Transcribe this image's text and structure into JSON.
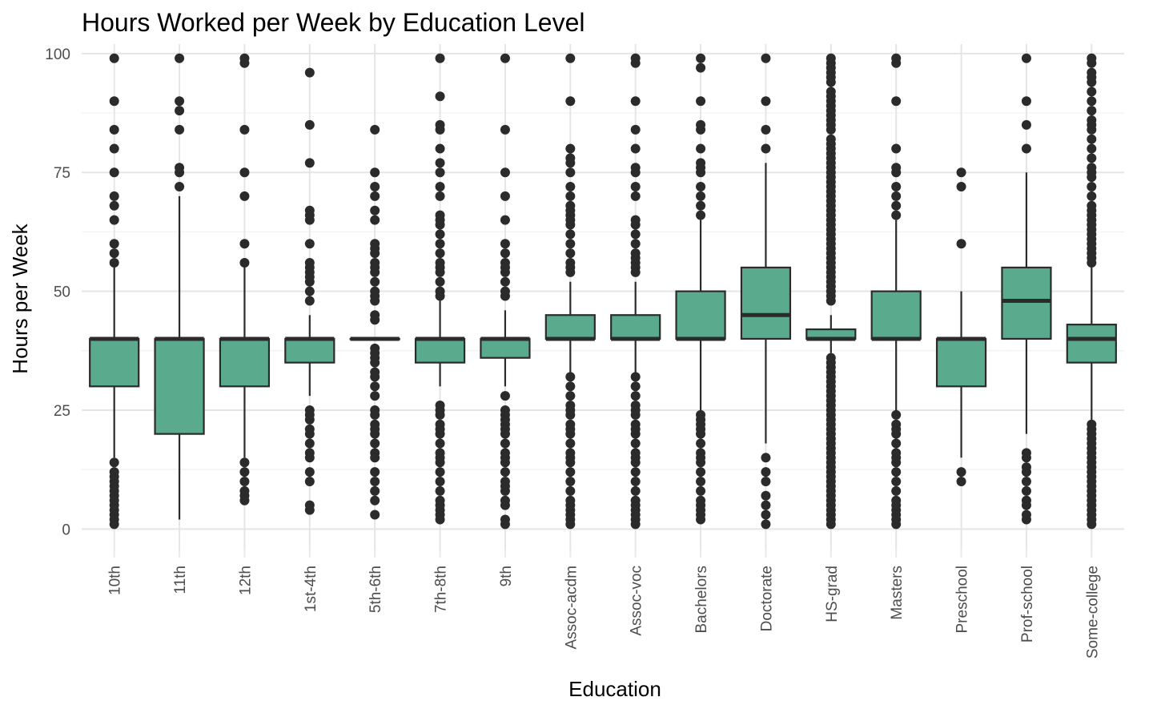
{
  "chart_data": {
    "type": "boxplot",
    "title": "Hours Worked per Week by Education Level",
    "xlabel": "Education",
    "ylabel": "Hours per Week",
    "ylim": [
      -5,
      102
    ],
    "yticks": [
      0,
      25,
      50,
      75,
      100
    ],
    "grid": true,
    "fill_color": "#5aaa8e",
    "line_color": "#2b2b2b",
    "categories": [
      "10th",
      "11th",
      "12th",
      "1st-4th",
      "5th-6th",
      "7th-8th",
      "9th",
      "Assoc-acdm",
      "Assoc-voc",
      "Bachelors",
      "Doctorate",
      "HS-grad",
      "Masters",
      "Preschool",
      "Prof-school",
      "Some-college"
    ],
    "boxes": [
      {
        "category": "10th",
        "whisker_low": 15,
        "q1": 30,
        "median": 40,
        "q3": 40,
        "whisker_high": 55,
        "outliers": [
          1,
          2,
          3,
          4,
          5,
          6,
          7,
          8,
          9,
          10,
          11,
          12,
          14,
          56,
          58,
          60,
          65,
          68,
          70,
          75,
          80,
          84,
          90,
          99
        ]
      },
      {
        "category": "11th",
        "whisker_low": 2,
        "q1": 20,
        "median": 40,
        "q3": 40,
        "whisker_high": 70,
        "outliers": [
          72,
          75,
          76,
          84,
          88,
          90,
          99
        ]
      },
      {
        "category": "12th",
        "whisker_low": 15,
        "q1": 30,
        "median": 40,
        "q3": 40,
        "whisker_high": 55,
        "outliers": [
          6,
          7,
          8,
          10,
          12,
          14,
          56,
          60,
          70,
          75,
          84,
          98,
          99
        ]
      },
      {
        "category": "1st-4th",
        "whisker_low": 28,
        "q1": 35,
        "median": 40,
        "q3": 40,
        "whisker_high": 45,
        "outliers": [
          4,
          5,
          10,
          12,
          15,
          16,
          18,
          20,
          21,
          23,
          24,
          25,
          48,
          50,
          52,
          53,
          54,
          55,
          56,
          60,
          65,
          66,
          67,
          77,
          85,
          96
        ]
      },
      {
        "category": "5th-6th",
        "whisker_low": 40,
        "q1": 40,
        "median": 40,
        "q3": 40,
        "whisker_high": 40,
        "outliers": [
          3,
          6,
          8,
          10,
          12,
          15,
          16,
          18,
          20,
          21,
          22,
          24,
          25,
          28,
          30,
          32,
          33,
          35,
          36,
          37,
          38,
          44,
          45,
          48,
          49,
          50,
          52,
          54,
          55,
          56,
          58,
          59,
          60,
          65,
          67,
          70,
          72,
          75,
          84
        ]
      },
      {
        "category": "7th-8th",
        "whisker_low": 30,
        "q1": 35,
        "median": 40,
        "q3": 40,
        "whisker_high": 48,
        "outliers": [
          2,
          3,
          4,
          5,
          6,
          8,
          10,
          12,
          14,
          15,
          16,
          18,
          20,
          21,
          22,
          24,
          25,
          26,
          49,
          50,
          52,
          54,
          55,
          56,
          58,
          60,
          62,
          64,
          65,
          66,
          70,
          72,
          75,
          77,
          80,
          84,
          85,
          91,
          99
        ]
      },
      {
        "category": "9th",
        "whisker_low": 30,
        "q1": 36,
        "median": 40,
        "q3": 40,
        "whisker_high": 46,
        "outliers": [
          1,
          2,
          5,
          6,
          8,
          9,
          10,
          12,
          14,
          15,
          16,
          18,
          20,
          21,
          22,
          23,
          24,
          25,
          28,
          49,
          50,
          52,
          54,
          55,
          56,
          58,
          60,
          65,
          70,
          75,
          84,
          99
        ]
      },
      {
        "category": "Assoc-acdm",
        "whisker_low": 33,
        "q1": 40,
        "median": 40,
        "q3": 45,
        "whisker_high": 52,
        "outliers": [
          1,
          2,
          3,
          4,
          5,
          6,
          8,
          10,
          12,
          14,
          15,
          16,
          18,
          20,
          21,
          22,
          24,
          25,
          26,
          28,
          30,
          32,
          54,
          55,
          56,
          58,
          60,
          62,
          64,
          65,
          66,
          67,
          68,
          70,
          72,
          75,
          77,
          78,
          80,
          90,
          99
        ]
      },
      {
        "category": "Assoc-voc",
        "whisker_low": 33,
        "q1": 40,
        "median": 40,
        "q3": 45,
        "whisker_high": 52,
        "outliers": [
          1,
          2,
          3,
          4,
          5,
          6,
          8,
          10,
          12,
          14,
          15,
          16,
          18,
          20,
          21,
          22,
          24,
          25,
          26,
          28,
          30,
          32,
          54,
          55,
          56,
          57,
          58,
          60,
          62,
          64,
          65,
          70,
          72,
          75,
          76,
          80,
          84,
          90,
          98,
          99
        ]
      },
      {
        "category": "Bachelors",
        "whisker_low": 25,
        "q1": 40,
        "median": 40,
        "q3": 50,
        "whisker_high": 65,
        "outliers": [
          2,
          3,
          4,
          5,
          6,
          8,
          10,
          12,
          14,
          15,
          16,
          18,
          20,
          21,
          22,
          23,
          24,
          66,
          68,
          70,
          72,
          75,
          76,
          77,
          80,
          84,
          85,
          90,
          97,
          99
        ]
      },
      {
        "category": "Doctorate",
        "whisker_low": 18,
        "q1": 40,
        "median": 45,
        "q3": 55,
        "whisker_high": 77,
        "outliers": [
          1,
          3,
          5,
          7,
          10,
          12,
          15,
          80,
          84,
          90,
          99
        ]
      },
      {
        "category": "HS-grad",
        "whisker_low": 37,
        "q1": 40,
        "median": 40,
        "q3": 42,
        "whisker_high": 45,
        "outliers": [
          1,
          2,
          3,
          4,
          5,
          6,
          7,
          8,
          9,
          10,
          11,
          12,
          13,
          14,
          15,
          16,
          17,
          18,
          19,
          20,
          21,
          22,
          23,
          24,
          25,
          26,
          27,
          28,
          29,
          30,
          31,
          32,
          33,
          34,
          35,
          36,
          48,
          49,
          50,
          51,
          52,
          53,
          54,
          55,
          56,
          57,
          58,
          59,
          60,
          61,
          62,
          63,
          64,
          65,
          66,
          67,
          68,
          69,
          70,
          71,
          72,
          73,
          74,
          75,
          76,
          77,
          78,
          79,
          80,
          81,
          82,
          84,
          85,
          86,
          87,
          88,
          89,
          90,
          91,
          92,
          94,
          95,
          96,
          97,
          98,
          99
        ]
      },
      {
        "category": "Masters",
        "whisker_low": 25,
        "q1": 40,
        "median": 40,
        "q3": 50,
        "whisker_high": 65,
        "outliers": [
          1,
          2,
          3,
          4,
          5,
          6,
          8,
          10,
          12,
          14,
          15,
          16,
          18,
          20,
          21,
          22,
          24,
          66,
          68,
          70,
          72,
          75,
          76,
          80,
          90,
          98,
          99
        ]
      },
      {
        "category": "Preschool",
        "whisker_low": 15,
        "q1": 30,
        "median": 40,
        "q3": 40,
        "whisker_high": 50,
        "outliers": [
          10,
          12,
          60,
          72,
          75
        ]
      },
      {
        "category": "Prof-school",
        "whisker_low": 20,
        "q1": 40,
        "median": 48,
        "q3": 55,
        "whisker_high": 75,
        "outliers": [
          2,
          3,
          5,
          6,
          8,
          10,
          12,
          13,
          15,
          16,
          80,
          85,
          90,
          99
        ]
      },
      {
        "category": "Some-college",
        "whisker_low": 23,
        "q1": 35,
        "median": 40,
        "q3": 43,
        "whisker_high": 55,
        "outliers": [
          1,
          2,
          3,
          4,
          5,
          6,
          7,
          8,
          9,
          10,
          11,
          12,
          13,
          14,
          15,
          16,
          17,
          18,
          19,
          20,
          21,
          22,
          56,
          57,
          58,
          59,
          60,
          61,
          62,
          63,
          64,
          65,
          66,
          67,
          68,
          70,
          72,
          74,
          75,
          76,
          78,
          80,
          82,
          84,
          85,
          86,
          88,
          90,
          92,
          94,
          95,
          96,
          98,
          99
        ]
      }
    ]
  }
}
